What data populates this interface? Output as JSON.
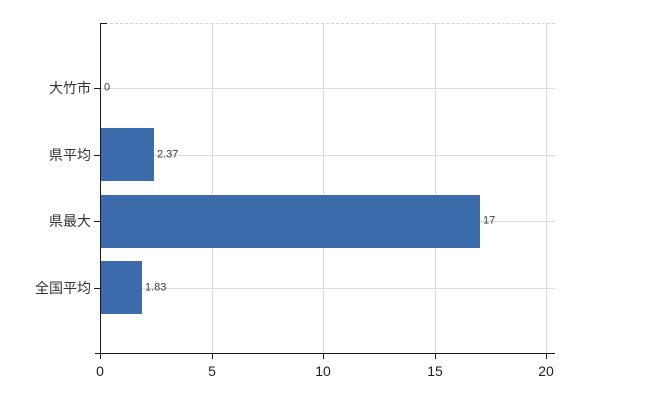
{
  "chart_data": {
    "type": "bar",
    "orientation": "horizontal",
    "title": "",
    "categories": [
      "大竹市",
      "県平均",
      "県最大",
      "全国平均"
    ],
    "values": [
      0,
      2.37,
      17,
      1.83
    ],
    "value_labels": [
      "0",
      "2.37",
      "17",
      "1.83"
    ],
    "xlabel": "",
    "ylabel": "",
    "xlim": [
      0,
      20
    ],
    "xticks": [
      0,
      5,
      10,
      15,
      20
    ],
    "xtick_labels": [
      "0",
      "5",
      "10",
      "15",
      "20"
    ],
    "grid": true,
    "legend": "none",
    "bar_color": "#3d6cad",
    "gridline_color": "#d9d9d9",
    "axis_color": "#1a1a1a",
    "background_color": "#ffffff"
  }
}
